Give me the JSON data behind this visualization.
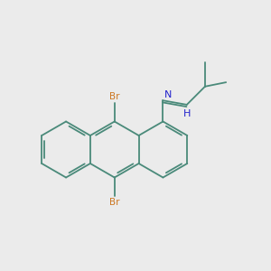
{
  "bg_color": "#ebebeb",
  "bond_color": "#4a8a7a",
  "br_color": "#cc7722",
  "n_color": "#2222cc",
  "line_width": 1.3,
  "figsize": [
    3.0,
    3.0
  ],
  "dpi": 100,
  "xlim": [
    -4.5,
    5.0
  ],
  "ylim": [
    -3.5,
    4.5
  ]
}
